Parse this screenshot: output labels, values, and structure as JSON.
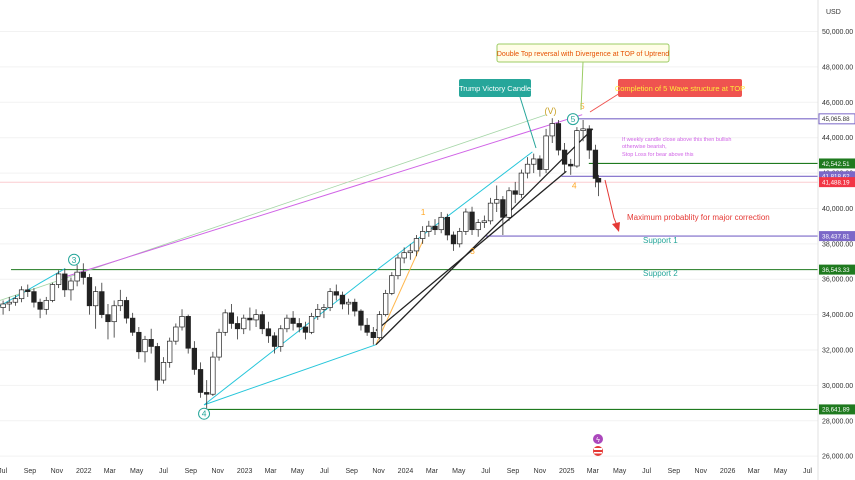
{
  "currency": "USD",
  "chart_data": {
    "type": "candlestick",
    "x_axis_labels": [
      "Jul",
      "Sep",
      "Nov",
      "2022",
      "Mar",
      "May",
      "Jul",
      "Sep",
      "Nov",
      "2023",
      "Mar",
      "May",
      "Jul",
      "Sep",
      "Nov",
      "2024",
      "Mar",
      "May",
      "Jul",
      "Sep",
      "Nov",
      "2025",
      "Mar",
      "May",
      "Jul",
      "Sep",
      "Nov",
      "2026",
      "Mar",
      "May",
      "Jul"
    ],
    "x_axis_dates": [
      "2021-07-01",
      "2021-09-01",
      "2021-11-01",
      "2022-01-01",
      "2022-03-01",
      "2022-05-01",
      "2022-07-01",
      "2022-09-01",
      "2022-11-01",
      "2023-01-01",
      "2023-03-01",
      "2023-05-01",
      "2023-07-01",
      "2023-09-01",
      "2023-11-01",
      "2024-01-01",
      "2024-03-01",
      "2024-05-01",
      "2024-07-01",
      "2024-09-01",
      "2024-11-01",
      "2025-01-01",
      "2025-03-01",
      "2025-05-01",
      "2025-07-01",
      "2025-09-01",
      "2025-11-01",
      "2026-01-01",
      "2026-03-01",
      "2026-05-01",
      "2026-07-01"
    ],
    "y_ticks": [
      26000,
      28000,
      30000,
      32000,
      34000,
      36000,
      38000,
      40000,
      42000,
      44000,
      46000,
      48000,
      50000
    ],
    "y_tick_labels": [
      "26,000.00",
      "28,000.00",
      "30,000.00",
      "32,000.00",
      "34,000.00",
      "36,000.00",
      "38,000.00",
      "40,000.00",
      "42,000.00",
      "44,000.00",
      "46,000.00",
      "48,000.00",
      "50,000.00"
    ],
    "ylim": [
      25500,
      51500
    ],
    "xlim": [
      "2021-06-25",
      "2026-07-25"
    ],
    "key_price": {
      "price": 45065.88,
      "label": "45,065.88",
      "color": "#7b68c8"
    },
    "price_levels": [
      {
        "price": 42542.51,
        "label": "42,542.51",
        "color": "#1f7a1f"
      },
      {
        "price": 41818.62,
        "label": "41,818.62",
        "color": "#7b68c8"
      },
      {
        "price": 41488.19,
        "label": "41,488.19",
        "color": "#f23645"
      },
      {
        "price": 38437.81,
        "label": "38,437.81",
        "color": "#7b68c8"
      },
      {
        "price": 36543.33,
        "label": "36,543.33",
        "color": "#1f7a1f"
      },
      {
        "price": 28641.89,
        "label": "28,641.89",
        "color": "#1f7a1f"
      }
    ],
    "candles": [
      [
        "2021-07-02",
        34400,
        34800,
        34000,
        34600
      ],
      [
        "2021-07-16",
        34600,
        35000,
        34200,
        34700
      ],
      [
        "2021-07-30",
        34700,
        35100,
        34500,
        34900
      ],
      [
        "2021-08-13",
        34900,
        35600,
        34700,
        35400
      ],
      [
        "2021-08-27",
        35400,
        35700,
        35000,
        35300
      ],
      [
        "2021-09-10",
        35300,
        35500,
        34400,
        34700
      ],
      [
        "2021-09-24",
        34700,
        34900,
        33800,
        34300
      ],
      [
        "2021-10-08",
        34300,
        35000,
        34000,
        34800
      ],
      [
        "2021-10-22",
        34800,
        35800,
        34700,
        35700
      ],
      [
        "2021-11-05",
        35700,
        36500,
        35500,
        36300
      ],
      [
        "2021-11-19",
        36300,
        36600,
        35000,
        35400
      ],
      [
        "2021-12-03",
        35400,
        36100,
        34800,
        35900
      ],
      [
        "2021-12-17",
        35900,
        36800,
        35600,
        36400
      ],
      [
        "2021-12-31",
        36400,
        36900,
        35700,
        36100
      ],
      [
        "2022-01-14",
        36100,
        36300,
        34000,
        34500
      ],
      [
        "2022-01-28",
        34500,
        35600,
        33200,
        35300
      ],
      [
        "2022-02-11",
        35300,
        35800,
        33800,
        34000
      ],
      [
        "2022-02-25",
        34000,
        34600,
        32600,
        33600
      ],
      [
        "2022-03-11",
        33600,
        34800,
        32700,
        34500
      ],
      [
        "2022-03-25",
        34500,
        35400,
        34200,
        34800
      ],
      [
        "2022-04-08",
        34800,
        35000,
        33500,
        33800
      ],
      [
        "2022-04-22",
        33800,
        34100,
        32800,
        33000
      ],
      [
        "2022-05-06",
        33000,
        33300,
        31500,
        31900
      ],
      [
        "2022-05-20",
        31900,
        32800,
        31300,
        32600
      ],
      [
        "2022-06-03",
        32600,
        33200,
        31800,
        32200
      ],
      [
        "2022-06-17",
        32200,
        32400,
        29700,
        30300
      ],
      [
        "2022-07-01",
        30300,
        31600,
        30100,
        31300
      ],
      [
        "2022-07-15",
        31300,
        32700,
        31000,
        32500
      ],
      [
        "2022-07-29",
        32500,
        33500,
        32300,
        33300
      ],
      [
        "2022-08-12",
        33300,
        34300,
        33100,
        33900
      ],
      [
        "2022-08-26",
        33900,
        34000,
        31800,
        32100
      ],
      [
        "2022-09-09",
        32100,
        32500,
        30600,
        30900
      ],
      [
        "2022-09-23",
        30900,
        31300,
        29300,
        29600
      ],
      [
        "2022-10-07",
        29600,
        30300,
        28700,
        29500
      ],
      [
        "2022-10-21",
        29500,
        31900,
        29400,
        31600
      ],
      [
        "2022-11-04",
        31600,
        33200,
        31400,
        33000
      ],
      [
        "2022-11-18",
        33000,
        34300,
        32800,
        34100
      ],
      [
        "2022-12-02",
        34100,
        34600,
        33200,
        33500
      ],
      [
        "2022-12-16",
        33500,
        33900,
        32600,
        33200
      ],
      [
        "2022-12-30",
        33200,
        34000,
        32900,
        33800
      ],
      [
        "2023-01-13",
        33800,
        34400,
        33100,
        33700
      ],
      [
        "2023-01-27",
        33700,
        34300,
        33300,
        34000
      ],
      [
        "2023-02-10",
        34000,
        34200,
        32900,
        33200
      ],
      [
        "2023-02-24",
        33200,
        33600,
        32400,
        32800
      ],
      [
        "2023-03-10",
        32800,
        33000,
        31800,
        32200
      ],
      [
        "2023-03-24",
        32200,
        33400,
        31900,
        33200
      ],
      [
        "2023-04-07",
        33200,
        34000,
        33000,
        33800
      ],
      [
        "2023-04-21",
        33800,
        34200,
        33100,
        33500
      ],
      [
        "2023-05-05",
        33500,
        33800,
        33000,
        33300
      ],
      [
        "2023-05-19",
        33300,
        33600,
        32600,
        33000
      ],
      [
        "2023-06-02",
        33000,
        34100,
        32900,
        33900
      ],
      [
        "2023-06-16",
        33900,
        34600,
        33700,
        34300
      ],
      [
        "2023-06-30",
        34300,
        34600,
        33800,
        34400
      ],
      [
        "2023-07-14",
        34400,
        35500,
        34200,
        35300
      ],
      [
        "2023-07-28",
        35300,
        35700,
        34800,
        35100
      ],
      [
        "2023-08-11",
        35100,
        35300,
        34300,
        34600
      ],
      [
        "2023-08-25",
        34600,
        34900,
        34000,
        34700
      ],
      [
        "2023-09-08",
        34700,
        34900,
        33900,
        34200
      ],
      [
        "2023-09-22",
        34200,
        34300,
        33100,
        33400
      ],
      [
        "2023-10-06",
        33400,
        33800,
        32800,
        33000
      ],
      [
        "2023-10-20",
        33000,
        33300,
        32300,
        32700
      ],
      [
        "2023-11-03",
        32700,
        34200,
        32600,
        34000
      ],
      [
        "2023-11-17",
        34000,
        35400,
        33900,
        35200
      ],
      [
        "2023-12-01",
        35200,
        36400,
        35100,
        36200
      ],
      [
        "2023-12-15",
        36200,
        37400,
        36000,
        37200
      ],
      [
        "2023-12-29",
        37200,
        37800,
        36900,
        37500
      ],
      [
        "2024-01-12",
        37500,
        38000,
        37100,
        37600
      ],
      [
        "2024-01-26",
        37600,
        38500,
        37300,
        38300
      ],
      [
        "2024-02-09",
        38300,
        39000,
        38000,
        38700
      ],
      [
        "2024-02-23",
        38700,
        39300,
        38400,
        39000
      ],
      [
        "2024-03-08",
        39000,
        39400,
        38500,
        38800
      ],
      [
        "2024-03-22",
        38800,
        39800,
        38600,
        39500
      ],
      [
        "2024-04-05",
        39500,
        39700,
        38200,
        38500
      ],
      [
        "2024-04-19",
        38500,
        38700,
        37600,
        38000
      ],
      [
        "2024-05-03",
        38000,
        38900,
        37800,
        38700
      ],
      [
        "2024-05-17",
        38700,
        40000,
        38500,
        39800
      ],
      [
        "2024-05-31",
        39800,
        40100,
        38500,
        38800
      ],
      [
        "2024-06-14",
        38800,
        39400,
        38400,
        39200
      ],
      [
        "2024-06-28",
        39200,
        39600,
        38900,
        39300
      ],
      [
        "2024-07-12",
        39300,
        40600,
        39100,
        40300
      ],
      [
        "2024-07-26",
        40300,
        41300,
        39800,
        40500
      ],
      [
        "2024-08-09",
        40500,
        40700,
        38500,
        39500
      ],
      [
        "2024-08-23",
        39500,
        41200,
        39300,
        41000
      ],
      [
        "2024-09-06",
        41000,
        41500,
        40300,
        40800
      ],
      [
        "2024-09-20",
        40800,
        42200,
        40600,
        42000
      ],
      [
        "2024-10-04",
        42000,
        42900,
        41700,
        42500
      ],
      [
        "2024-10-18",
        42500,
        43100,
        42000,
        42800
      ],
      [
        "2024-11-01",
        42800,
        43000,
        41800,
        42200
      ],
      [
        "2024-11-15",
        42200,
        44500,
        42000,
        44100
      ],
      [
        "2024-11-29",
        44100,
        45100,
        43700,
        44800
      ],
      [
        "2024-12-13",
        44800,
        45000,
        43000,
        43300
      ],
      [
        "2024-12-27",
        43300,
        43700,
        42000,
        42500
      ],
      [
        "2025-01-10",
        42500,
        42800,
        41900,
        42400
      ],
      [
        "2025-01-24",
        42400,
        44600,
        42300,
        44400
      ],
      [
        "2025-02-07",
        44400,
        45000,
        43800,
        44500
      ],
      [
        "2025-02-21",
        44500,
        44700,
        42800,
        43300
      ],
      [
        "2025-03-07",
        43300,
        43600,
        41200,
        41700
      ],
      [
        "2025-03-14",
        41700,
        41900,
        40700,
        41488.19
      ]
    ],
    "trendlines": [
      {
        "from": [
          "2021-06-25",
          34800
        ],
        "to": [
          "2024-11-15",
          45300
        ],
        "color": "#a5d6a7",
        "width": 0.8
      },
      {
        "from": [
          "2021-11-15",
          36100
        ],
        "to": [
          "2025-02-05",
          45300
        ],
        "color": "#d063e6",
        "width": 1
      },
      {
        "from": [
          "2021-06-25",
          34500
        ],
        "to": [
          "2021-11-20",
          36600
        ],
        "color": "#26c6da",
        "width": 1
      },
      {
        "from": [
          "2022-10-01",
          28900
        ],
        "to": [
          "2023-11-01",
          36600
        ],
        "color": "#26c6da",
        "width": 1
      },
      {
        "from": [
          "2023-11-01",
          36600
        ],
        "to": [
          "2024-10-15",
          43200
        ],
        "color": "#26c6da",
        "width": 1
      },
      {
        "from": [
          "2022-10-01",
          28900
        ],
        "to": [
          "2023-10-26",
          32300
        ],
        "color": "#26c6da",
        "width": 1
      },
      {
        "from": [
          "2023-10-26",
          32300
        ],
        "to": [
          "2024-02-10",
          38200
        ],
        "color": "#ffb74d",
        "width": 1
      },
      {
        "from": [
          "2023-10-26",
          32300
        ],
        "to": [
          "2025-03-01",
          44500
        ],
        "color": "#222222",
        "width": 1.3
      },
      {
        "from": [
          "2023-10-26",
          33100
        ],
        "to": [
          "2024-12-31",
          42100
        ],
        "color": "#222222",
        "width": 1.3
      }
    ],
    "wave_labels": [
      {
        "text": "3",
        "date": "2021-12-10",
        "price": 37100,
        "color": "#26a69a",
        "circle": true
      },
      {
        "text": "4",
        "date": "2022-10-01",
        "price": 28400,
        "color": "#26a69a",
        "circle": true
      },
      {
        "text": "1",
        "date": "2024-02-10",
        "price": 39800,
        "color": "#ffa726",
        "circle": false
      },
      {
        "text": "3",
        "date": "2024-06-01",
        "price": 37600,
        "color": "#ffa726",
        "circle": false
      },
      {
        "text": "(V)",
        "date": "2024-11-25",
        "price": 45500,
        "color": "#c9a227",
        "circle": false
      },
      {
        "text": "5",
        "date": "2025-02-05",
        "price": 45800,
        "color": "#ffa726",
        "circle": false
      },
      {
        "text": "5",
        "date": "2025-01-15",
        "price": 45050,
        "color": "#26a69a",
        "circle": true
      },
      {
        "text": "4",
        "date": "2025-01-18",
        "price": 41300,
        "color": "#ffa726",
        "circle": false
      }
    ],
    "annotations": {
      "trump_candle": "Trump Victory Candle",
      "double_top": "Double Top reversal with Divergence at TOP of Uptrend",
      "five_wave": "Completion of 5 Wave structure at TOP",
      "weekly_note_1": "If weekly candle close above this then bullish",
      "weekly_note_2": "otherwise bearish,",
      "weekly_note_3": "Stop Loss for bear above this",
      "max_prob": "Maximum probablity for major correction",
      "support_1": "Support 1",
      "support_2": "Support 2"
    }
  }
}
